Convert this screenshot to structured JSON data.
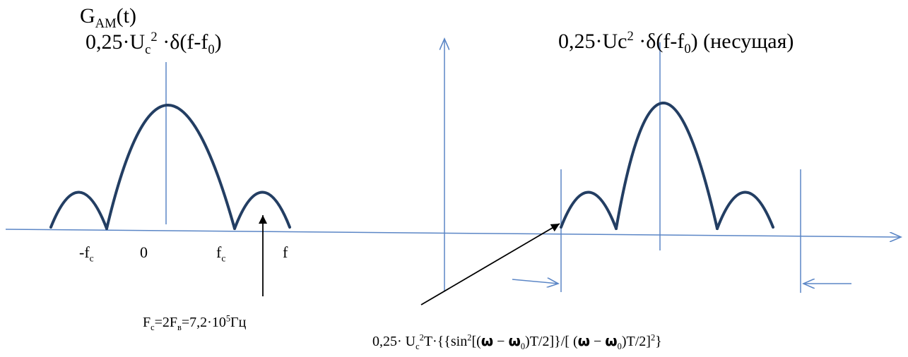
{
  "title": "G",
  "title_sub": "AM",
  "title_tail": "(t)",
  "left_carrier": {
    "a": "0,25·U",
    "sub": "c",
    "sup": "2",
    "b": " ·δ(f-f",
    "sub2": "0",
    "c": ")"
  },
  "right_carrier": {
    "a": "0,25·Uc",
    "sup": "2",
    "b": " ·δ(f-f",
    "sub2": "0",
    "c": ") (несущая)"
  },
  "axis_labels": {
    "neg_fc": "-f",
    "neg_fc_sub": "c",
    "zero": "0",
    "fc": "f",
    "fc_sub": "c",
    "f": "f"
  },
  "fc_note": {
    "a": "F",
    "a_sub": "c",
    "b": "=2F",
    "b_sub": "в",
    "c": "=7,2·10",
    "c_sup": "5",
    "d": "Гц"
  },
  "formula": {
    "a": "0,25· U",
    "a_sub": "c",
    "a_sup": "2",
    "b": "T·{{sin",
    "b_sup": "2",
    "c": "[(",
    "omega": "ω",
    "minus": " − ",
    "d": "",
    "d_sub": "0",
    "e": ")T/2]}/[ (",
    "f": ")T/2]",
    "f_sup": "2",
    "g": "}"
  },
  "colors": {
    "axis": "#5b86c6",
    "curve": "#233e63",
    "pointer": "#000000",
    "text": "#000000"
  }
}
